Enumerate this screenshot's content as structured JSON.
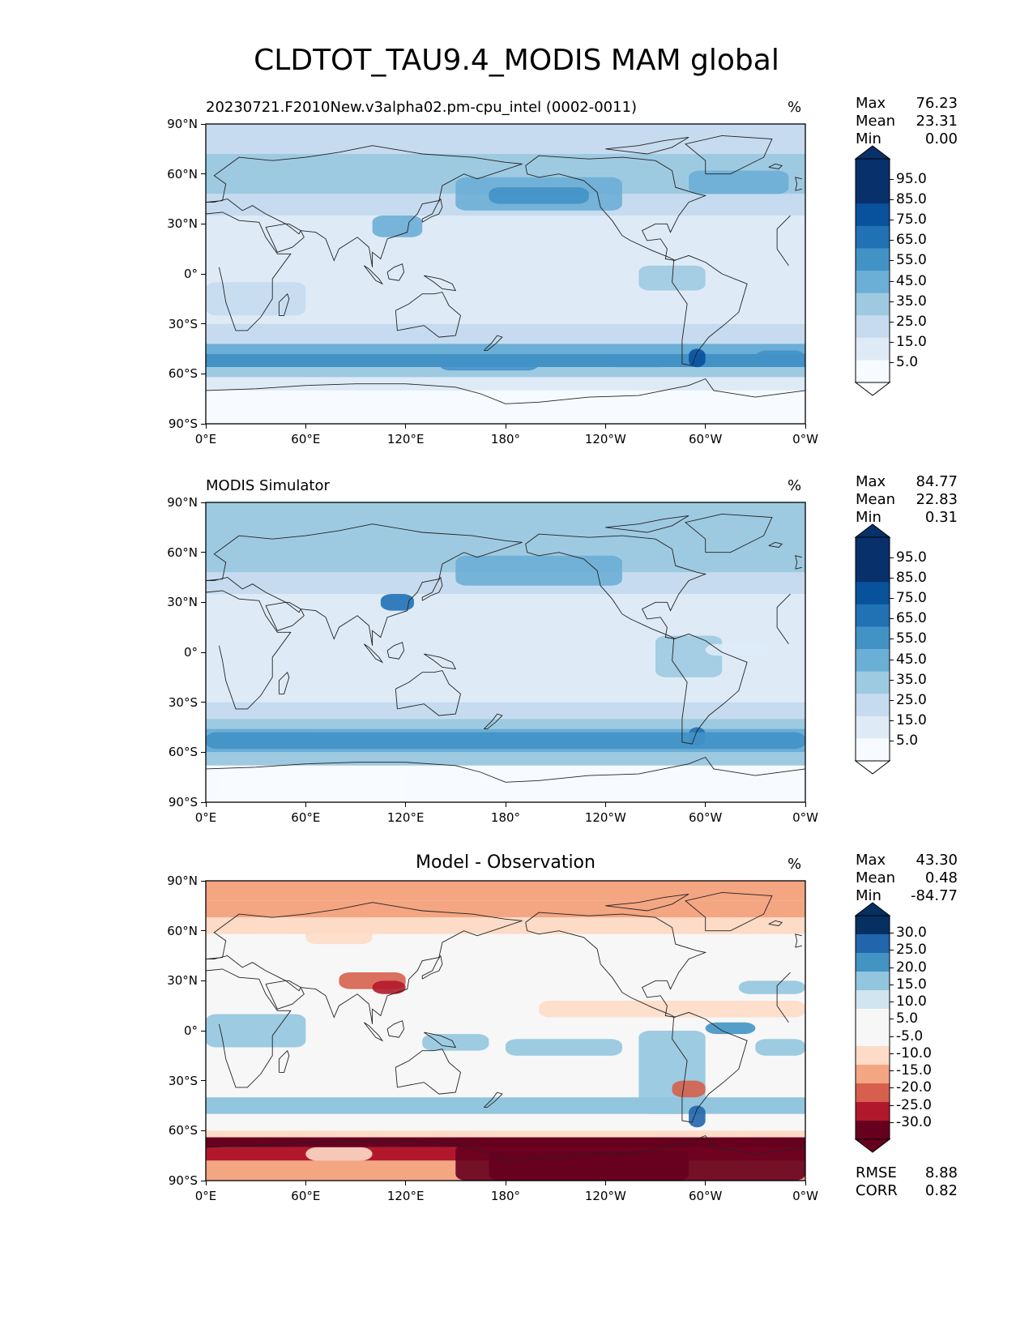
{
  "title": "CLDTOT_TAU9.4_MODIS MAM global",
  "colors": {
    "blues": [
      "#f7fbff",
      "#deebf7",
      "#c6dbef",
      "#9ecae1",
      "#6baed6",
      "#4292c6",
      "#2171b5",
      "#08519c",
      "#08306b",
      "#08306b"
    ],
    "diff": [
      "#67001f",
      "#b2182b",
      "#d6604d",
      "#f4a582",
      "#fddbc7",
      "#f7f7f7",
      "#f7f7f7",
      "#d1e5f0",
      "#92c5de",
      "#4393c3",
      "#2166ac",
      "#053061"
    ],
    "coast": "#222222"
  },
  "x_ticks": [
    "0°E",
    "60°E",
    "120°E",
    "180°",
    "120°W",
    "60°W",
    "0°W"
  ],
  "y_ticks": [
    "90°N",
    "60°N",
    "30°N",
    "0°",
    "30°S",
    "60°S",
    "90°S"
  ],
  "chart_data": [
    {
      "type": "heatmap",
      "title": "20230721.F2010New.v3alpha02.pm-cpu_intel (0002-0011)",
      "units": "%",
      "stats": {
        "max_label": "Max",
        "max": "76.23",
        "mean_label": "Mean",
        "mean": "23.31",
        "min_label": "Min",
        "min": "0.00"
      },
      "colorbar": {
        "levels": [
          "95.0",
          "85.0",
          "75.0",
          "65.0",
          "55.0",
          "45.0",
          "35.0",
          "25.0",
          "15.0",
          "5.0"
        ],
        "extend": "both"
      },
      "xlim": [
        0,
        360
      ],
      "ylim": [
        -90,
        90
      ]
    },
    {
      "type": "heatmap",
      "title": "MODIS Simulator",
      "units": "%",
      "stats": {
        "max_label": "Max",
        "max": "84.77",
        "mean_label": "Mean",
        "mean": "22.83",
        "min_label": "Min",
        "min": "0.31"
      },
      "colorbar": {
        "levels": [
          "95.0",
          "85.0",
          "75.0",
          "65.0",
          "55.0",
          "45.0",
          "35.0",
          "25.0",
          "15.0",
          "5.0"
        ],
        "extend": "both"
      },
      "xlim": [
        0,
        360
      ],
      "ylim": [
        -90,
        90
      ]
    },
    {
      "type": "heatmap",
      "title": "Model - Observation",
      "units": "%",
      "stats": {
        "max_label": "Max",
        "max": "43.30",
        "mean_label": "Mean",
        "mean": "0.48",
        "min_label": "Min",
        "min": "-84.77",
        "rmse_label": "RMSE",
        "rmse": "8.88",
        "corr_label": "CORR",
        "corr": "0.82"
      },
      "colorbar": {
        "levels": [
          "30.0",
          "25.0",
          "20.0",
          "15.0",
          "10.0",
          "5.0",
          "-5.0",
          "-10.0",
          "-15.0",
          "-20.0",
          "-25.0",
          "-30.0"
        ],
        "extend": "both"
      },
      "xlim": [
        0,
        360
      ],
      "ylim": [
        -90,
        90
      ]
    }
  ]
}
